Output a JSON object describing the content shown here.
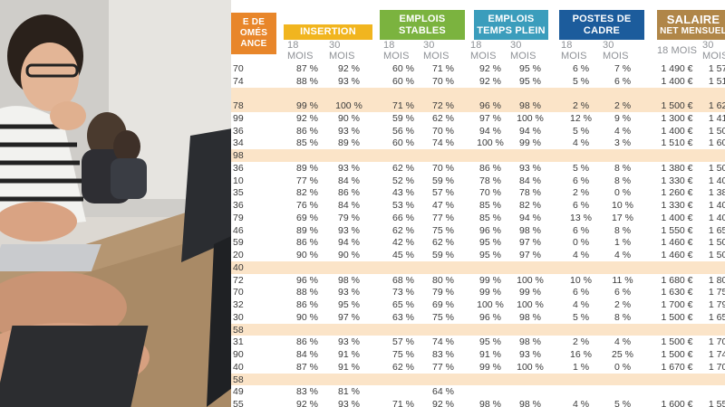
{
  "colors": {
    "diplomes": "#e8862a",
    "insertion": "#f1b51f",
    "emplois_stables": "#7bb33f",
    "temps_plein": "#3b9dbc",
    "cadre": "#1c5c9c",
    "salaire": "#b08648",
    "row_band": "#fbe4c8"
  },
  "headers": {
    "diplomes": "E DE\nOMÉS\nANCE",
    "insertion": "INSERTION",
    "emplois_stables": "EMPLOIS\nSTABLES",
    "temps_plein": "EMPLOIS\nTEMPS PLEIN",
    "cadre": "POSTES DE\nCADRE",
    "salaire_title": "SALAIRE",
    "salaire_sub": "NET MENSUEL"
  },
  "subheaders": [
    "18 MOIS",
    "30 MOIS",
    "18 MOIS",
    "30 MOIS",
    "18 MOIS",
    "30 MOIS",
    "18 MOIS",
    "30 MOIS",
    "18 MOIS",
    "30 MOIS"
  ],
  "rows": [
    {
      "band": false,
      "c": [
        "70",
        "87 %",
        "92 %",
        "60 %",
        "71 %",
        "92 %",
        "95 %",
        "6 %",
        "7 %",
        "1 490 €",
        "1 570"
      ]
    },
    {
      "band": false,
      "c": [
        "74",
        "88 %",
        "93 %",
        "60 %",
        "70 %",
        "92 %",
        "95 %",
        "5 %",
        "6 %",
        "1 400 €",
        "1 510"
      ]
    },
    {
      "band": true,
      "c": [
        "",
        "",
        "",
        "",
        "",
        "",
        "",
        "",
        "",
        "",
        ""
      ]
    },
    {
      "band": true,
      "c": [
        "78",
        "99 %",
        "100 %",
        "71 %",
        "72 %",
        "96 %",
        "98 %",
        "2 %",
        "2 %",
        "1 500 €",
        "1 620"
      ]
    },
    {
      "band": false,
      "c": [
        "99",
        "92 %",
        "90 %",
        "59 %",
        "62 %",
        "97 %",
        "100 %",
        "12 %",
        "9 %",
        "1 300 €",
        "1 410"
      ]
    },
    {
      "band": false,
      "c": [
        "36",
        "86 %",
        "93 %",
        "56 %",
        "70 %",
        "94 %",
        "94 %",
        "5 %",
        "4 %",
        "1 400 €",
        "1 500"
      ]
    },
    {
      "band": false,
      "c": [
        "34",
        "85 %",
        "89 %",
        "60 %",
        "74 %",
        "100 %",
        "99 %",
        "4 %",
        "3 %",
        "1 510 €",
        "1 600"
      ]
    },
    {
      "band": true,
      "c": [
        "98",
        "",
        "",
        "",
        "",
        "",
        "",
        "",
        "",
        "",
        ""
      ]
    },
    {
      "band": false,
      "c": [
        "36",
        "89 %",
        "93 %",
        "62 %",
        "70 %",
        "86 %",
        "93 %",
        "5 %",
        "8 %",
        "1 380 €",
        "1 500"
      ]
    },
    {
      "band": false,
      "c": [
        "10",
        "77 %",
        "84 %",
        "52 %",
        "59 %",
        "78 %",
        "84 %",
        "6 %",
        "8 %",
        "1 330 €",
        "1 400"
      ]
    },
    {
      "band": false,
      "c": [
        "35",
        "82 %",
        "86 %",
        "43 %",
        "57 %",
        "70 %",
        "78 %",
        "2 %",
        "0 %",
        "1 260 €",
        "1 380"
      ]
    },
    {
      "band": false,
      "c": [
        "36",
        "76 %",
        "84 %",
        "53 %",
        "47 %",
        "85 %",
        "82 %",
        "6 %",
        "10 %",
        "1 330 €",
        "1 400"
      ]
    },
    {
      "band": false,
      "c": [
        "79",
        "69 %",
        "79 %",
        "66 %",
        "77 %",
        "85 %",
        "94 %",
        "13 %",
        "17 %",
        "1 400 €",
        "1 400"
      ]
    },
    {
      "band": false,
      "c": [
        "46",
        "89 %",
        "93 %",
        "62 %",
        "75 %",
        "96 %",
        "98 %",
        "6 %",
        "8 %",
        "1 550 €",
        "1 650"
      ]
    },
    {
      "band": false,
      "c": [
        "59",
        "86 %",
        "94 %",
        "42 %",
        "62 %",
        "95 %",
        "97 %",
        "0 %",
        "1 %",
        "1 460 €",
        "1 500"
      ]
    },
    {
      "band": false,
      "c": [
        "20",
        "90 %",
        "90 %",
        "45 %",
        "59 %",
        "95 %",
        "97 %",
        "4 %",
        "4 %",
        "1 460 €",
        "1 500"
      ]
    },
    {
      "band": true,
      "c": [
        "40",
        "",
        "",
        "",
        "",
        "",
        "",
        "",
        "",
        "",
        ""
      ]
    },
    {
      "band": false,
      "c": [
        "72",
        "96 %",
        "98 %",
        "68 %",
        "80 %",
        "99 %",
        "100 %",
        "10 %",
        "11 %",
        "1 680 €",
        "1 800"
      ]
    },
    {
      "band": false,
      "c": [
        "70",
        "88 %",
        "93 %",
        "73 %",
        "79 %",
        "99 %",
        "99 %",
        "6 %",
        "6 %",
        "1 630 €",
        "1 750"
      ]
    },
    {
      "band": false,
      "c": [
        "32",
        "86 %",
        "95 %",
        "65 %",
        "69 %",
        "100 %",
        "100 %",
        "4 %",
        "2 %",
        "1 700 €",
        "1 790"
      ]
    },
    {
      "band": false,
      "c": [
        "30",
        "90 %",
        "97 %",
        "63 %",
        "75 %",
        "96 %",
        "98 %",
        "5 %",
        "8 %",
        "1 500 €",
        "1 650"
      ]
    },
    {
      "band": true,
      "c": [
        "58",
        "",
        "",
        "",
        "",
        "",
        "",
        "",
        "",
        "",
        ""
      ]
    },
    {
      "band": false,
      "c": [
        "31",
        "86 %",
        "93 %",
        "57 %",
        "74 %",
        "95 %",
        "98 %",
        "2 %",
        "4 %",
        "1 500 €",
        "1 700"
      ]
    },
    {
      "band": false,
      "c": [
        "90",
        "84 %",
        "91 %",
        "75 %",
        "83 %",
        "91 %",
        "93 %",
        "16 %",
        "25 %",
        "1 500 €",
        "1 740"
      ]
    },
    {
      "band": false,
      "c": [
        "40",
        "87 %",
        "91 %",
        "62 %",
        "77 %",
        "99 %",
        "100 %",
        "1 %",
        "0 %",
        "1 670 €",
        "1 700"
      ]
    },
    {
      "band": true,
      "c": [
        "58",
        "",
        "",
        "",
        "",
        "",
        "",
        "",
        "",
        "",
        ""
      ]
    },
    {
      "band": false,
      "c": [
        "49",
        "83 %",
        "81 %",
        "",
        "64 %",
        "",
        "",
        "",
        "",
        "",
        ""
      ]
    },
    {
      "band": false,
      "c": [
        "55",
        "92 %",
        "93 %",
        "71 %",
        "92 %",
        "98 %",
        "98 %",
        "4 %",
        "5 %",
        "1 600 €",
        "1 550"
      ]
    }
  ]
}
